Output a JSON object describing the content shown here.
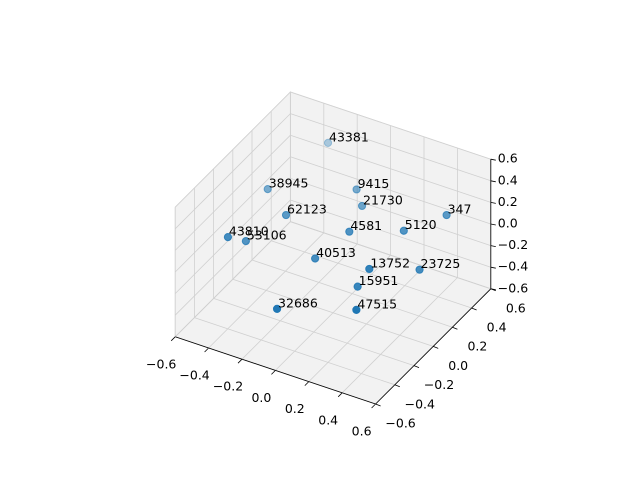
{
  "chart_data": {
    "type": "scatter3d",
    "labels": [
      "43381",
      "38945",
      "9415",
      "21730",
      "62123",
      "347",
      "5120",
      "4581",
      "43810",
      "53106",
      "40513",
      "13752",
      "23725",
      "15951",
      "32686",
      "47515"
    ],
    "x": [
      -0.3,
      -0.46,
      -0.06,
      -0.01,
      -0.31,
      0.41,
      0.24,
      0.0,
      -0.52,
      -0.47,
      -0.13,
      0.16,
      0.34,
      0.09,
      -0.22,
      0.14
    ],
    "y": [
      0.47,
      0.12,
      0.35,
      0.32,
      0.05,
      0.47,
      0.32,
      0.17,
      -0.19,
      -0.09,
      0.04,
      0.1,
      0.31,
      0.1,
      -0.2,
      0.0
    ],
    "z": [
      0.4,
      0.2,
      0.2,
      0.1,
      0.1,
      0.1,
      0.0,
      0.0,
      0.0,
      -0.1,
      -0.2,
      -0.2,
      -0.3,
      -0.4,
      -0.5,
      -0.5
    ],
    "color": "#1f77b4",
    "xlim": [
      -0.6,
      0.6
    ],
    "ylim": [
      -0.6,
      0.6
    ],
    "zlim": [
      -0.6,
      0.6
    ],
    "xticks": [
      {
        "value": -0.6,
        "label": "−0.6"
      },
      {
        "value": -0.4,
        "label": "−0.4"
      },
      {
        "value": -0.2,
        "label": "−0.2"
      },
      {
        "value": 0,
        "label": "0.0"
      },
      0.2,
      0.4,
      0.6
    ],
    "yticks": [
      {
        "value": -0.6,
        "label": "−0.6"
      },
      {
        "value": -0.4,
        "label": "−0.4"
      },
      {
        "value": -0.2,
        "label": "−0.2"
      },
      {
        "value": 0,
        "label": "0.0"
      },
      0.2,
      0.4,
      0.6
    ],
    "zticks": [
      {
        "value": -0.6,
        "label": "−0.6"
      },
      {
        "value": -0.4,
        "label": "−0.4"
      },
      {
        "value": -0.2,
        "label": "−0.2"
      },
      {
        "value": 0,
        "label": "0.0"
      },
      0.2,
      0.4,
      0.6
    ],
    "grid": true
  }
}
